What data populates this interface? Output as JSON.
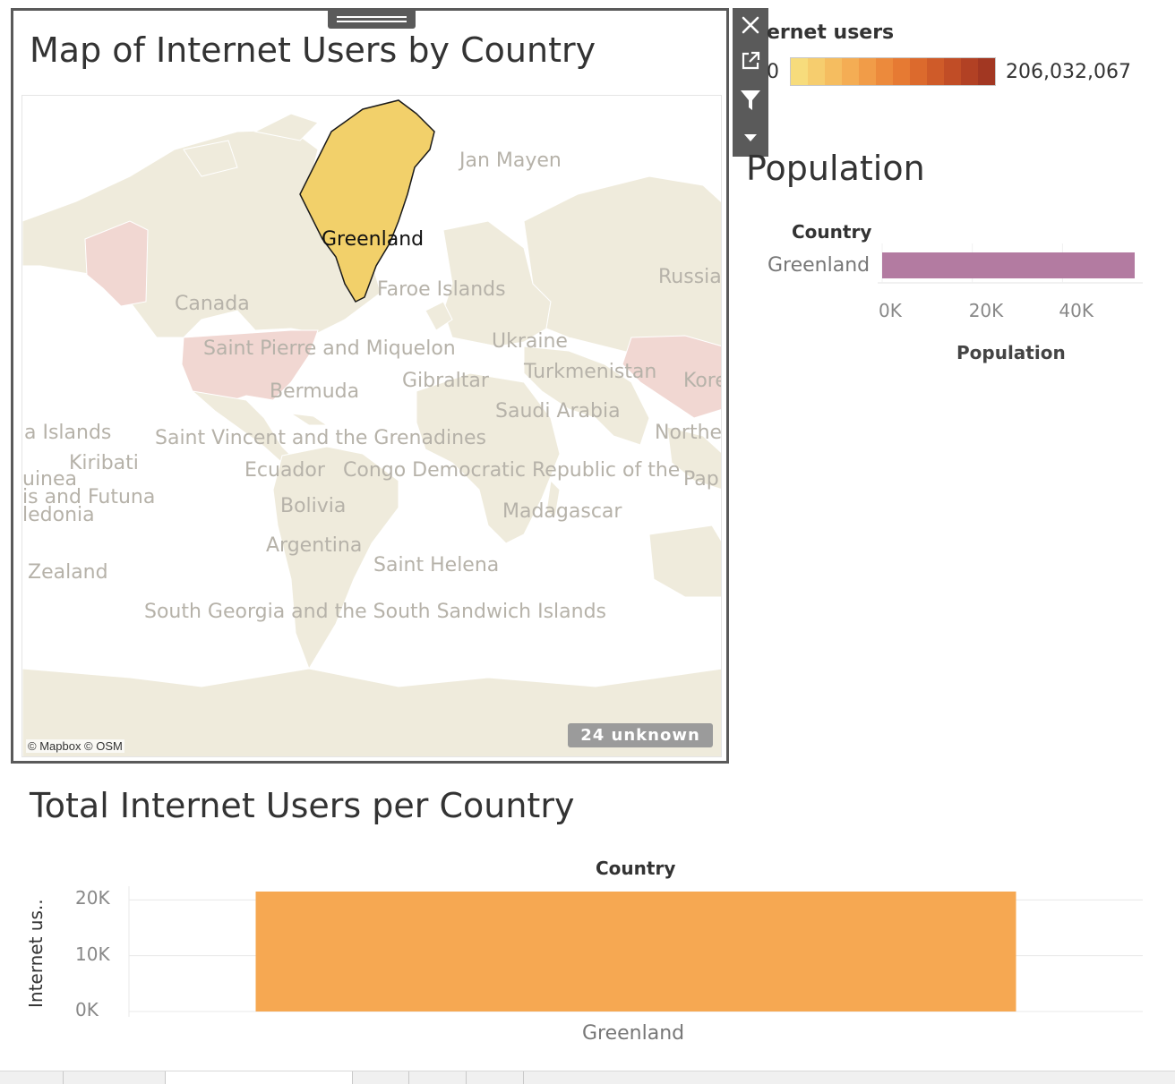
{
  "map": {
    "title": "Map of Internet Users by Country",
    "highlighted_country": "Greenland",
    "highlight_color": "#f2d06a",
    "labels": {
      "greenland": "Greenland",
      "jan_mayen": "Jan Mayen",
      "faroe": "Faroe Islands",
      "russia": "Russia",
      "canada": "Canada",
      "spm": "Saint Pierre and Miquelon",
      "ukraine": "Ukraine",
      "gibraltar": "Gibraltar",
      "turkmenistan": "Turkmenistan",
      "korea": "Kore",
      "bermuda": "Bermuda",
      "saudi": "Saudi Arabia",
      "islands": "a Islands",
      "svg": "Saint Vincent and the Grenadines",
      "northe": "Northe",
      "kiribati": "Kiribati",
      "ecuador": "Ecuador",
      "congo": "Congo Democratic Republic of the",
      "pap": "Pap",
      "guinea": "uinea",
      "wallis": "is and Futuna",
      "caledonia": "ledonia",
      "bolivia": "Bolivia",
      "madagascar": "Madagascar",
      "argentina": "Argentina",
      "zealand": "Zealand",
      "helena": "Saint Helena",
      "sgssi": "South Georgia and the South Sandwich Islands"
    },
    "unknown_badge": "24 unknown",
    "attribution": "© Mapbox © OSM"
  },
  "toolbar": {
    "icons": [
      "close-icon",
      "popout-icon",
      "filter-icon",
      "dropdown-caret-icon"
    ]
  },
  "legend": {
    "title": "ernet users",
    "min_label": "0",
    "max_label": "206,032,067",
    "ramp_colors": [
      "#f7dc7c",
      "#f6cd6e",
      "#f5bd60",
      "#f4ad54",
      "#f19c48",
      "#ec8a3c",
      "#e67a33",
      "#dc6a2d",
      "#cf5b29",
      "#c14d26",
      "#b24124",
      "#a23722"
    ]
  },
  "population_chart": {
    "title": "Population",
    "column_header": "Country",
    "axis_title": "Population",
    "bar_color": "#b37ba1",
    "chart_data": {
      "type": "bar",
      "orientation": "horizontal",
      "categories": [
        "Greenland"
      ],
      "values": [
        56000
      ],
      "xlabel": "Population",
      "ylabel": "Country",
      "ticks": [
        "0K",
        "20K",
        "40K"
      ],
      "tick_values": [
        0,
        20000,
        40000
      ],
      "xlim": [
        0,
        56000
      ]
    }
  },
  "internet_chart": {
    "title": "Total Internet Users per Country",
    "column_header": "Country",
    "bar_color": "#f6a852",
    "chart_data": {
      "type": "bar",
      "categories": [
        "Greenland"
      ],
      "values": [
        21500
      ],
      "xlabel": "Country",
      "ylabel": "Internet us..",
      "ticks": [
        "0K",
        "10K",
        "20K"
      ],
      "tick_values": [
        0,
        10000,
        20000
      ],
      "ylim": [
        0,
        21500
      ],
      "grid": true
    }
  }
}
